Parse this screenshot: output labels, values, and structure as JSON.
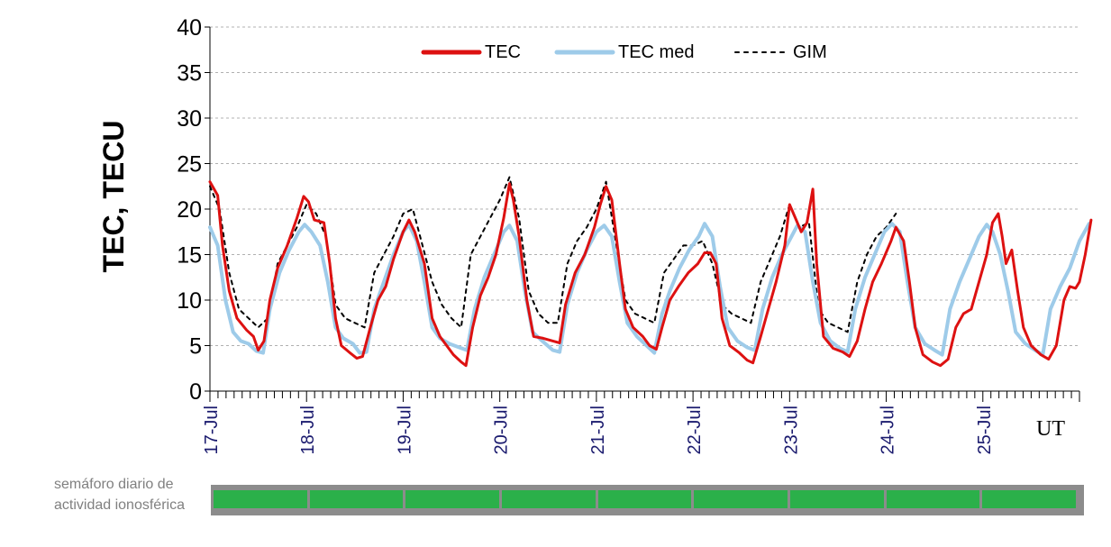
{
  "chart_data": {
    "type": "line",
    "ylabel": "TEC, TECU",
    "xlabel": "UT",
    "ylim": [
      0,
      40
    ],
    "yticks": [
      "0",
      "5",
      "10",
      "15",
      "20",
      "25",
      "30",
      "35",
      "40"
    ],
    "xlim": [
      0,
      9.0
    ],
    "day_labels": [
      "17-Jul",
      "18-Jul",
      "19-Jul",
      "20-Jul",
      "21-Jul",
      "22-Jul",
      "23-Jul",
      "24-Jul",
      "25-Jul"
    ],
    "grid": "horizontal dashed",
    "legend_position": "top-center",
    "series": [
      {
        "name": "TEC",
        "color": "#dd1111",
        "style": "solid",
        "points": [
          [
            0.0,
            23.0
          ],
          [
            0.08,
            21.5
          ],
          [
            0.13,
            16
          ],
          [
            0.2,
            11
          ],
          [
            0.28,
            8
          ],
          [
            0.38,
            6.7
          ],
          [
            0.45,
            6
          ],
          [
            0.5,
            4.5
          ],
          [
            0.56,
            5.5
          ],
          [
            0.62,
            10
          ],
          [
            0.7,
            13.5
          ],
          [
            0.8,
            16
          ],
          [
            0.9,
            19
          ],
          [
            0.97,
            21.4
          ],
          [
            1.02,
            20.8
          ],
          [
            1.08,
            18.8
          ],
          [
            1.18,
            18.5
          ],
          [
            1.24,
            14
          ],
          [
            1.3,
            8
          ],
          [
            1.36,
            5
          ],
          [
            1.45,
            4.2
          ],
          [
            1.52,
            3.6
          ],
          [
            1.58,
            3.8
          ],
          [
            1.66,
            7
          ],
          [
            1.74,
            10
          ],
          [
            1.82,
            11.5
          ],
          [
            1.9,
            14.5
          ],
          [
            2.0,
            17.5
          ],
          [
            2.06,
            18.8
          ],
          [
            2.12,
            17.5
          ],
          [
            2.22,
            14
          ],
          [
            2.3,
            8
          ],
          [
            2.38,
            6
          ],
          [
            2.45,
            5
          ],
          [
            2.52,
            4
          ],
          [
            2.6,
            3.2
          ],
          [
            2.65,
            2.8
          ],
          [
            2.72,
            7
          ],
          [
            2.8,
            10.5
          ],
          [
            2.88,
            12.5
          ],
          [
            2.96,
            15
          ],
          [
            3.04,
            19
          ],
          [
            3.1,
            22.8
          ],
          [
            3.14,
            21
          ],
          [
            3.2,
            17
          ],
          [
            3.28,
            10
          ],
          [
            3.35,
            6
          ],
          [
            3.45,
            5.8
          ],
          [
            3.55,
            5.5
          ],
          [
            3.62,
            5.3
          ],
          [
            3.68,
            9.5
          ],
          [
            3.78,
            13
          ],
          [
            3.88,
            15
          ],
          [
            3.98,
            18
          ],
          [
            4.04,
            20.5
          ],
          [
            4.1,
            22.5
          ],
          [
            4.16,
            21
          ],
          [
            4.24,
            14
          ],
          [
            4.3,
            9
          ],
          [
            4.38,
            7
          ],
          [
            4.48,
            6
          ],
          [
            4.55,
            5
          ],
          [
            4.62,
            4.6
          ],
          [
            4.68,
            7
          ],
          [
            4.76,
            10
          ],
          [
            4.85,
            11.5
          ],
          [
            4.95,
            13
          ],
          [
            5.05,
            14
          ],
          [
            5.12,
            15.2
          ],
          [
            5.18,
            15.2
          ],
          [
            5.24,
            14
          ],
          [
            5.3,
            8
          ],
          [
            5.38,
            5
          ],
          [
            5.48,
            4.2
          ],
          [
            5.56,
            3.4
          ],
          [
            5.62,
            3.1
          ],
          [
            5.7,
            6
          ],
          [
            5.78,
            9
          ],
          [
            5.86,
            12
          ],
          [
            5.95,
            16
          ],
          [
            6.0,
            20.5
          ],
          [
            6.06,
            19
          ],
          [
            6.12,
            17.5
          ],
          [
            6.18,
            18.5
          ],
          [
            6.24,
            22.2
          ],
          [
            6.28,
            14
          ],
          [
            6.35,
            6
          ],
          [
            6.45,
            4.7
          ],
          [
            6.55,
            4.3
          ],
          [
            6.62,
            3.8
          ],
          [
            6.7,
            5.5
          ],
          [
            6.78,
            9
          ],
          [
            6.86,
            12
          ],
          [
            6.95,
            14
          ],
          [
            7.05,
            16.5
          ],
          [
            7.1,
            18
          ],
          [
            7.18,
            16.5
          ],
          [
            7.24,
            12
          ],
          [
            7.3,
            7
          ],
          [
            7.38,
            4
          ],
          [
            7.48,
            3.2
          ],
          [
            7.56,
            2.8
          ],
          [
            7.64,
            3.5
          ],
          [
            7.72,
            7
          ],
          [
            7.8,
            8.5
          ],
          [
            7.88,
            9
          ],
          [
            7.96,
            12
          ],
          [
            8.04,
            15
          ],
          [
            8.1,
            18.5
          ],
          [
            8.16,
            19.5
          ],
          [
            8.2,
            17
          ],
          [
            8.24,
            14
          ],
          [
            8.3,
            15.5
          ],
          [
            8.36,
            11
          ],
          [
            8.42,
            7
          ],
          [
            8.5,
            5
          ],
          [
            8.6,
            4
          ],
          [
            8.68,
            3.5
          ],
          [
            8.76,
            5
          ],
          [
            8.84,
            10
          ],
          [
            8.9,
            11.5
          ],
          [
            8.96,
            11.3
          ],
          [
            9.0,
            12
          ],
          [
            9.06,
            15
          ],
          [
            9.12,
            18.8
          ]
        ]
      },
      {
        "name": "TEC med",
        "color": "#9ecbe9",
        "style": "solid",
        "points": [
          [
            0.0,
            18
          ],
          [
            0.08,
            16
          ],
          [
            0.16,
            10
          ],
          [
            0.24,
            6.5
          ],
          [
            0.32,
            5.5
          ],
          [
            0.4,
            5.2
          ],
          [
            0.48,
            4.4
          ],
          [
            0.55,
            4.2
          ],
          [
            0.62,
            9
          ],
          [
            0.72,
            13
          ],
          [
            0.82,
            15.5
          ],
          [
            0.92,
            17.5
          ],
          [
            0.98,
            18.3
          ],
          [
            1.05,
            17.5
          ],
          [
            1.14,
            16
          ],
          [
            1.22,
            12
          ],
          [
            1.3,
            7
          ],
          [
            1.38,
            5.8
          ],
          [
            1.48,
            5.2
          ],
          [
            1.55,
            4.2
          ],
          [
            1.62,
            4.3
          ],
          [
            1.7,
            9
          ],
          [
            1.8,
            12
          ],
          [
            1.9,
            15
          ],
          [
            2.0,
            17.5
          ],
          [
            2.06,
            18.3
          ],
          [
            2.14,
            16.5
          ],
          [
            2.22,
            12
          ],
          [
            2.3,
            7
          ],
          [
            2.38,
            5.8
          ],
          [
            2.48,
            5.2
          ],
          [
            2.58,
            4.8
          ],
          [
            2.66,
            4.5
          ],
          [
            2.74,
            9
          ],
          [
            2.84,
            12.5
          ],
          [
            2.94,
            15
          ],
          [
            3.04,
            17.5
          ],
          [
            3.1,
            18.2
          ],
          [
            3.18,
            16.5
          ],
          [
            3.26,
            11
          ],
          [
            3.34,
            6.5
          ],
          [
            3.44,
            5.5
          ],
          [
            3.55,
            4.5
          ],
          [
            3.62,
            4.3
          ],
          [
            3.7,
            9.5
          ],
          [
            3.8,
            13
          ],
          [
            3.9,
            15.5
          ],
          [
            4.0,
            17.5
          ],
          [
            4.08,
            18.2
          ],
          [
            4.16,
            17
          ],
          [
            4.24,
            12
          ],
          [
            4.32,
            7.5
          ],
          [
            4.42,
            6
          ],
          [
            4.52,
            5
          ],
          [
            4.6,
            4.2
          ],
          [
            4.68,
            8.5
          ],
          [
            4.76,
            11
          ],
          [
            4.86,
            13.5
          ],
          [
            4.96,
            15.5
          ],
          [
            5.06,
            17
          ],
          [
            5.12,
            18.4
          ],
          [
            5.2,
            17
          ],
          [
            5.28,
            11.5
          ],
          [
            5.36,
            7
          ],
          [
            5.46,
            5.5
          ],
          [
            5.56,
            4.8
          ],
          [
            5.64,
            4.5
          ],
          [
            5.72,
            9
          ],
          [
            5.82,
            12.5
          ],
          [
            5.92,
            15
          ],
          [
            6.02,
            17
          ],
          [
            6.08,
            18.2
          ],
          [
            6.16,
            17.5
          ],
          [
            6.24,
            12
          ],
          [
            6.32,
            7.5
          ],
          [
            6.42,
            5.5
          ],
          [
            6.52,
            4.7
          ],
          [
            6.6,
            4.3
          ],
          [
            6.68,
            9
          ],
          [
            6.78,
            12.5
          ],
          [
            6.88,
            15
          ],
          [
            6.98,
            17.5
          ],
          [
            7.06,
            18.4
          ],
          [
            7.14,
            17.5
          ],
          [
            7.22,
            12
          ],
          [
            7.3,
            7
          ],
          [
            7.4,
            5.2
          ],
          [
            7.5,
            4.5
          ],
          [
            7.58,
            4
          ],
          [
            7.66,
            9
          ],
          [
            7.76,
            12
          ],
          [
            7.86,
            14.5
          ],
          [
            7.96,
            17
          ],
          [
            8.04,
            18.3
          ],
          [
            8.1,
            17.5
          ],
          [
            8.18,
            15
          ],
          [
            8.26,
            11
          ],
          [
            8.34,
            6.5
          ],
          [
            8.44,
            5.2
          ],
          [
            8.54,
            4.5
          ],
          [
            8.62,
            4
          ],
          [
            8.7,
            9
          ],
          [
            8.8,
            11.5
          ],
          [
            8.9,
            13.5
          ],
          [
            9.0,
            16.5
          ],
          [
            9.1,
            18.4
          ]
        ]
      },
      {
        "name": "GIM",
        "color": "#000000",
        "style": "dashed",
        "points": [
          [
            0.0,
            22.5
          ],
          [
            0.1,
            20
          ],
          [
            0.2,
            13
          ],
          [
            0.3,
            9
          ],
          [
            0.4,
            8
          ],
          [
            0.5,
            7
          ],
          [
            0.6,
            8
          ],
          [
            0.7,
            14
          ],
          [
            0.8,
            16
          ],
          [
            0.9,
            18
          ],
          [
            1.0,
            20.5
          ],
          [
            1.1,
            19.5
          ],
          [
            1.2,
            17
          ],
          [
            1.3,
            9.5
          ],
          [
            1.4,
            8
          ],
          [
            1.5,
            7.5
          ],
          [
            1.6,
            7
          ],
          [
            1.7,
            13
          ],
          [
            1.8,
            15
          ],
          [
            1.9,
            17
          ],
          [
            2.0,
            19.5
          ],
          [
            2.1,
            20
          ],
          [
            2.2,
            16
          ],
          [
            2.3,
            12
          ],
          [
            2.4,
            9.5
          ],
          [
            2.5,
            8
          ],
          [
            2.6,
            7
          ],
          [
            2.7,
            15
          ],
          [
            2.8,
            17
          ],
          [
            2.9,
            19
          ],
          [
            3.0,
            21
          ],
          [
            3.1,
            23.5
          ],
          [
            3.2,
            19
          ],
          [
            3.3,
            11
          ],
          [
            3.4,
            8.5
          ],
          [
            3.5,
            7.5
          ],
          [
            3.6,
            7.5
          ],
          [
            3.7,
            14
          ],
          [
            3.8,
            16.5
          ],
          [
            3.9,
            18
          ],
          [
            4.0,
            20
          ],
          [
            4.1,
            23
          ],
          [
            4.2,
            16.5
          ],
          [
            4.3,
            10
          ],
          [
            4.4,
            8.5
          ],
          [
            4.5,
            8
          ],
          [
            4.6,
            7.5
          ],
          [
            4.7,
            13
          ],
          [
            4.8,
            14.5
          ],
          [
            4.9,
            16
          ],
          [
            5.0,
            16
          ],
          [
            5.1,
            16.5
          ],
          [
            5.2,
            14
          ],
          [
            5.3,
            9.5
          ],
          [
            5.4,
            8.5
          ],
          [
            5.5,
            8
          ],
          [
            5.6,
            7.5
          ],
          [
            5.7,
            12
          ],
          [
            5.8,
            14.5
          ],
          [
            5.9,
            17
          ],
          [
            6.0,
            20.5
          ],
          [
            6.1,
            18
          ],
          [
            6.2,
            18.5
          ],
          [
            6.3,
            9
          ],
          [
            6.4,
            7.5
          ],
          [
            6.5,
            7
          ],
          [
            6.6,
            6.5
          ],
          [
            6.7,
            12
          ],
          [
            6.8,
            15
          ],
          [
            6.9,
            17
          ],
          [
            7.0,
            18
          ],
          [
            7.1,
            19.5
          ]
        ]
      }
    ],
    "semaforo": {
      "label": "semáforo diario de actividad ionosférica",
      "cell_color": "#2bb04a",
      "frame_color": "#8c8c8c",
      "days": 9
    }
  }
}
